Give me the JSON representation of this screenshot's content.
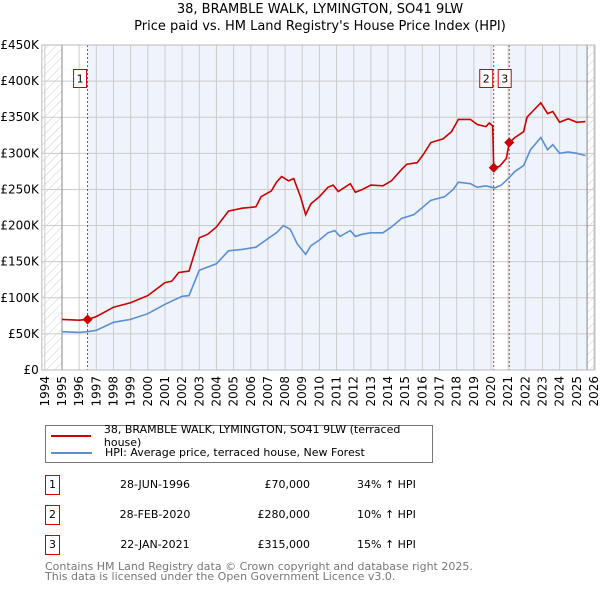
{
  "title": "38, BRAMBLE WALK, LYMINGTON, SO41 9LW",
  "subtitle": "Price paid vs. HM Land Registry's House Price Index (HPI)",
  "colors": {
    "property": "#cc0000",
    "hpi": "#5b8fd4",
    "shade": "#eef3fc"
  },
  "chart_data": {
    "type": "line",
    "title": "38, BRAMBLE WALK, LYMINGTON, SO41 9LW",
    "xlim": [
      1994,
      2026
    ],
    "ylim": [
      0,
      450000
    ],
    "x_ticks": [
      "1994",
      "1995",
      "1996",
      "1997",
      "1998",
      "1999",
      "2000",
      "2001",
      "2002",
      "2003",
      "2004",
      "2005",
      "2006",
      "2007",
      "2008",
      "2009",
      "2010",
      "2011",
      "2012",
      "2013",
      "2014",
      "2015",
      "2016",
      "2017",
      "2018",
      "2019",
      "2020",
      "2021",
      "2022",
      "2023",
      "2024",
      "2025",
      "2026"
    ],
    "y_ticks": [
      {
        "v": 0,
        "label": "£0"
      },
      {
        "v": 50,
        "label": "£50K"
      },
      {
        "v": 100,
        "label": "£100K"
      },
      {
        "v": 150,
        "label": "£150K"
      },
      {
        "v": 200,
        "label": "£200K"
      },
      {
        "v": 250,
        "label": "£250K"
      },
      {
        "v": 300,
        "label": "£300K"
      },
      {
        "v": 350,
        "label": "£350K"
      },
      {
        "v": 400,
        "label": "£400K"
      },
      {
        "v": 450,
        "label": "£450K"
      }
    ],
    "units": "thousand GBP",
    "series": [
      {
        "name": "38, BRAMBLE WALK, LYMINGTON, SO41 9LW (terraced house)",
        "color": "#cc0000",
        "x": [
          1995,
          1996,
          1996.5,
          1997,
          1998,
          1999,
          2000,
          2001,
          2001.4,
          2001.8,
          2002.4,
          2003,
          2003.5,
          2004,
          2004.7,
          2005.5,
          2006.3,
          2006.6,
          2007.2,
          2007.5,
          2007.8,
          2008.2,
          2008.5,
          2008.9,
          2009.2,
          2009.5,
          2010,
          2010.5,
          2010.8,
          2011.1,
          2011.8,
          2012.1,
          2012.5,
          2013,
          2013.7,
          2014.2,
          2014.8,
          2015.1,
          2015.7,
          2016.1,
          2016.5,
          2017.2,
          2017.7,
          2018.1,
          2018.8,
          2019.2,
          2019.7,
          2019.9,
          2020.1,
          2020.16,
          2020.5,
          2020.9,
          2021.06,
          2021.4,
          2021.9,
          2022.1,
          2022.5,
          2022.9,
          2023.3,
          2023.6,
          2024,
          2024.5,
          2025,
          2025.5
        ],
        "y": [
          70,
          69,
          70,
          74,
          87,
          93,
          103,
          121,
          123,
          135,
          137,
          183,
          188,
          198,
          220,
          224,
          226,
          240,
          248,
          260,
          268,
          262,
          265,
          240,
          215,
          230,
          240,
          253,
          256,
          247,
          258,
          246,
          250,
          256,
          255,
          262,
          278,
          285,
          287,
          300,
          315,
          320,
          330,
          347,
          347,
          340,
          337,
          342,
          338,
          280,
          282,
          293,
          315,
          322,
          330,
          350,
          360,
          370,
          355,
          358,
          343,
          348,
          343,
          344
        ]
      },
      {
        "name": "HPI: Average price, terraced house, New Forest",
        "color": "#5b8fd4",
        "x": [
          1995,
          1996,
          1996.5,
          1997,
          1998,
          1999,
          2000,
          2001,
          2002,
          2002.4,
          2003,
          2004,
          2004.7,
          2005.5,
          2006.3,
          2007,
          2007.5,
          2007.9,
          2008.3,
          2008.7,
          2009.2,
          2009.5,
          2010,
          2010.5,
          2010.9,
          2011.2,
          2011.8,
          2012.1,
          2012.5,
          2013,
          2013.7,
          2014.2,
          2014.8,
          2015.5,
          2016,
          2016.5,
          2017.3,
          2017.8,
          2018.1,
          2018.8,
          2019.2,
          2019.7,
          2020.2,
          2020.6,
          2021,
          2021.4,
          2021.9,
          2022.3,
          2022.9,
          2023.3,
          2023.6,
          2024,
          2024.5,
          2025,
          2025.5
        ],
        "y": [
          53,
          52,
          53,
          55,
          66,
          70,
          78,
          91,
          102,
          103,
          138,
          147,
          165,
          167,
          170,
          182,
          190,
          200,
          195,
          175,
          160,
          172,
          180,
          190,
          193,
          185,
          193,
          185,
          188,
          190,
          190,
          198,
          210,
          215,
          225,
          235,
          240,
          250,
          260,
          258,
          253,
          255,
          252,
          256,
          265,
          275,
          283,
          305,
          322,
          305,
          312,
          300,
          302,
          300,
          297
        ]
      }
    ],
    "sales": [
      {
        "id": "1",
        "x": 1996.49,
        "y": 70
      },
      {
        "id": "2",
        "x": 2020.16,
        "y": 280
      },
      {
        "id": "3",
        "x": 2021.06,
        "y": 315
      }
    ]
  },
  "legend": {
    "property": "38, BRAMBLE WALK, LYMINGTON, SO41 9LW (terraced house)",
    "hpi": "HPI: Average price, terraced house, New Forest"
  },
  "table": [
    {
      "id": "1",
      "date": "28-JUN-1996",
      "price": "£70,000",
      "hpi": "34% ↑ HPI"
    },
    {
      "id": "2",
      "date": "28-FEB-2020",
      "price": "£280,000",
      "hpi": "10% ↑ HPI"
    },
    {
      "id": "3",
      "date": "22-JAN-2021",
      "price": "£315,000",
      "hpi": "15% ↑ HPI"
    }
  ],
  "footer": {
    "line1": "Contains HM Land Registry data © Crown copyright and database right 2025.",
    "line2": "This data is licensed under the Open Government Licence v3.0."
  }
}
